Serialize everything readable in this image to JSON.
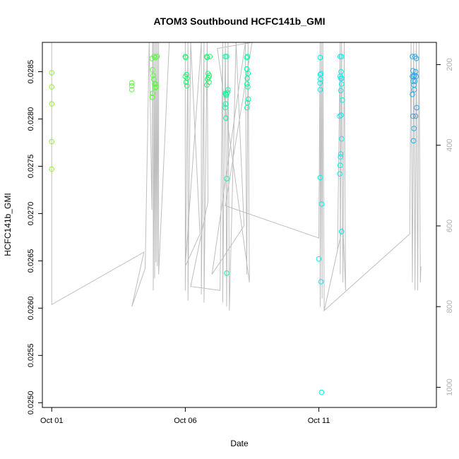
{
  "chart_data": {
    "type": "scatter",
    "title": "ATOM3 Southbound HCFC141b_GMI",
    "xlabel": "Date",
    "ylabel": "HCFC141b_GMI",
    "x_tick_labels": [
      "Oct 01",
      "Oct 06",
      "Oct 11"
    ],
    "x_tick_values": [
      1,
      6,
      11
    ],
    "xlim": [
      0.65,
      15.4
    ],
    "ylim": [
      0.02495,
      0.02881
    ],
    "y_ticks": [
      "0.0250",
      "0.0255",
      "0.0260",
      "0.0265",
      "0.0270",
      "0.0275",
      "0.0280",
      "0.0285"
    ],
    "y_tick_values": [
      0.025,
      0.0255,
      0.026,
      0.0265,
      0.027,
      0.0275,
      0.028,
      0.0285
    ],
    "y2_ticks": [
      "200",
      "400",
      "600",
      "800",
      "1000"
    ],
    "y2_tick_values": [
      200,
      400,
      600,
      800,
      1000
    ],
    "y2lim": [
      1050,
      145
    ],
    "grid": false,
    "legend": "none",
    "point_colors": [
      "#8cf238",
      "#5cf840",
      "#1cf86c",
      "#10f59a",
      "#10eaea",
      "#1ad2ea",
      "#2aa8e8"
    ],
    "line_color": "#bebebe",
    "points": [
      [
        1.0,
        0.02849,
        0
      ],
      [
        1.0,
        0.02834,
        0
      ],
      [
        1.0,
        0.02816,
        0
      ],
      [
        1.0,
        0.02776,
        0
      ],
      [
        1.0,
        0.02747,
        0
      ],
      [
        4.0,
        0.02838,
        1
      ],
      [
        4.0,
        0.02835,
        1
      ],
      [
        4.0,
        0.02831,
        1
      ],
      [
        4.75,
        0.02864,
        1
      ],
      [
        4.77,
        0.02852,
        1
      ],
      [
        4.8,
        0.02846,
        1
      ],
      [
        4.82,
        0.02842,
        1
      ],
      [
        4.85,
        0.02837,
        1
      ],
      [
        4.87,
        0.02833,
        1
      ],
      [
        4.78,
        0.02827,
        1
      ],
      [
        4.76,
        0.02823,
        1
      ],
      [
        4.9,
        0.02837,
        1
      ],
      [
        4.92,
        0.02834,
        1
      ],
      [
        4.88,
        0.02865,
        1
      ],
      [
        4.94,
        0.02866,
        1
      ],
      [
        4.84,
        0.02866,
        1
      ],
      [
        6.0,
        0.02866,
        2
      ],
      [
        6.02,
        0.02865,
        2
      ],
      [
        6.05,
        0.02847,
        2
      ],
      [
        6.07,
        0.02843,
        2
      ],
      [
        6.03,
        0.02839,
        2
      ],
      [
        6.06,
        0.02835,
        2
      ],
      [
        6.0,
        0.02845,
        2
      ],
      [
        6.8,
        0.02866,
        2
      ],
      [
        6.82,
        0.02865,
        2
      ],
      [
        6.85,
        0.02848,
        2
      ],
      [
        6.87,
        0.02844,
        2
      ],
      [
        6.83,
        0.02842,
        2
      ],
      [
        6.89,
        0.02839,
        2
      ],
      [
        6.81,
        0.02836,
        2
      ],
      [
        6.92,
        0.02866,
        2
      ],
      [
        6.9,
        0.02846,
        2
      ],
      [
        7.5,
        0.02866,
        3
      ],
      [
        7.55,
        0.02866,
        3
      ],
      [
        7.5,
        0.02827,
        3
      ],
      [
        7.52,
        0.02826,
        3
      ],
      [
        7.54,
        0.02825,
        3
      ],
      [
        7.51,
        0.02816,
        3
      ],
      [
        7.5,
        0.02812,
        3
      ],
      [
        7.52,
        0.02801,
        3
      ],
      [
        7.6,
        0.02831,
        3
      ],
      [
        7.58,
        0.02828,
        3
      ],
      [
        7.55,
        0.02737,
        3
      ],
      [
        7.55,
        0.02637,
        3
      ],
      [
        8.3,
        0.02865,
        3
      ],
      [
        8.33,
        0.02866,
        3
      ],
      [
        8.3,
        0.02853,
        3
      ],
      [
        8.32,
        0.02843,
        3
      ],
      [
        8.35,
        0.02848,
        3
      ],
      [
        8.31,
        0.02837,
        3
      ],
      [
        8.34,
        0.02834,
        3
      ],
      [
        8.36,
        0.02821,
        3
      ],
      [
        8.33,
        0.02817,
        3
      ],
      [
        8.31,
        0.02812,
        3
      ],
      [
        11.05,
        0.02865,
        4
      ],
      [
        11.05,
        0.02847,
        4
      ],
      [
        11.08,
        0.02848,
        4
      ],
      [
        11.06,
        0.02842,
        4
      ],
      [
        11.04,
        0.02838,
        4
      ],
      [
        11.05,
        0.02831,
        4
      ],
      [
        11.05,
        0.02738,
        4
      ],
      [
        11.1,
        0.0271,
        4
      ],
      [
        11.0,
        0.02652,
        4
      ],
      [
        11.08,
        0.02628,
        4
      ],
      [
        11.1,
        0.02511,
        4
      ],
      [
        11.8,
        0.02866,
        4
      ],
      [
        11.85,
        0.02866,
        4
      ],
      [
        11.8,
        0.02845,
        4
      ],
      [
        11.83,
        0.0285,
        4
      ],
      [
        11.82,
        0.02843,
        4
      ],
      [
        11.86,
        0.02843,
        4
      ],
      [
        11.85,
        0.02837,
        4
      ],
      [
        11.82,
        0.0283,
        4
      ],
      [
        11.88,
        0.0282,
        4
      ],
      [
        11.83,
        0.02804,
        4
      ],
      [
        11.78,
        0.02803,
        4
      ],
      [
        11.85,
        0.02779,
        4
      ],
      [
        11.82,
        0.02763,
        4
      ],
      [
        11.81,
        0.0276,
        4
      ],
      [
        11.8,
        0.02751,
        4
      ],
      [
        11.78,
        0.02742,
        4
      ],
      [
        11.85,
        0.02681,
        4
      ],
      [
        14.5,
        0.02866,
        6
      ],
      [
        14.6,
        0.02866,
        6
      ],
      [
        14.65,
        0.02864,
        6
      ],
      [
        14.52,
        0.02851,
        6
      ],
      [
        14.62,
        0.0285,
        6
      ],
      [
        14.55,
        0.02845,
        6
      ],
      [
        14.5,
        0.02845,
        6
      ],
      [
        14.64,
        0.02845,
        6
      ],
      [
        14.58,
        0.02846,
        6
      ],
      [
        14.6,
        0.0284,
        6
      ],
      [
        14.53,
        0.0284,
        6
      ],
      [
        14.56,
        0.02836,
        6
      ],
      [
        14.57,
        0.02831,
        6
      ],
      [
        14.5,
        0.02826,
        6
      ],
      [
        14.66,
        0.02812,
        6
      ],
      [
        14.52,
        0.02803,
        6
      ],
      [
        14.62,
        0.02803,
        6
      ],
      [
        14.56,
        0.0279,
        6
      ],
      [
        14.54,
        0.02777,
        6
      ]
    ],
    "profile_line": [
      [
        1.0,
        145
      ],
      [
        1.0,
        795
      ],
      [
        4.45,
        665
      ],
      [
        4.0,
        800
      ],
      [
        4.5,
        705
      ],
      [
        4.65,
        145
      ],
      [
        4.75,
        560
      ],
      [
        4.78,
        145
      ],
      [
        4.8,
        145
      ],
      [
        4.8,
        760
      ],
      [
        4.85,
        145
      ],
      [
        4.85,
        730
      ],
      [
        4.9,
        145
      ],
      [
        4.9,
        690
      ],
      [
        4.95,
        145
      ],
      [
        4.95,
        700
      ],
      [
        5.0,
        145
      ],
      [
        5.0,
        720
      ],
      [
        5.4,
        145
      ],
      [
        6.0,
        145
      ],
      [
        6.0,
        760
      ],
      [
        6.1,
        145
      ],
      [
        6.1,
        785
      ],
      [
        6.2,
        145
      ],
      [
        6.55,
        620
      ],
      [
        6.0,
        700
      ],
      [
        6.6,
        145
      ],
      [
        6.6,
        770
      ],
      [
        6.7,
        145
      ],
      [
        6.7,
        790
      ],
      [
        6.82,
        145
      ],
      [
        6.85,
        540
      ],
      [
        6.2,
        750
      ],
      [
        7.3,
        760
      ],
      [
        7.4,
        145
      ],
      [
        7.4,
        790
      ],
      [
        7.5,
        145
      ],
      [
        7.55,
        800
      ],
      [
        7.6,
        145
      ],
      [
        7.65,
        810
      ],
      [
        7.9,
        145
      ],
      [
        8.2,
        600
      ],
      [
        7.0,
        720
      ],
      [
        8.25,
        145
      ],
      [
        8.3,
        720
      ],
      [
        8.35,
        145
      ],
      [
        8.4,
        740
      ],
      [
        7.2,
        160
      ],
      [
        8.5,
        145
      ],
      [
        7.5,
        550
      ],
      [
        11.0,
        630
      ],
      [
        11.05,
        145
      ],
      [
        11.05,
        800
      ],
      [
        11.1,
        145
      ],
      [
        11.12,
        780
      ],
      [
        11.15,
        145
      ],
      [
        11.2,
        810
      ],
      [
        11.7,
        660
      ],
      [
        11.8,
        145
      ],
      [
        11.8,
        720
      ],
      [
        11.85,
        145
      ],
      [
        11.9,
        740
      ],
      [
        11.95,
        145
      ],
      [
        12.0,
        760
      ],
      [
        11.9,
        600
      ],
      [
        11.2,
        810
      ],
      [
        14.4,
        620
      ],
      [
        14.45,
        145
      ],
      [
        14.5,
        740
      ],
      [
        14.55,
        145
      ],
      [
        14.6,
        760
      ],
      [
        14.65,
        145
      ],
      [
        14.7,
        760
      ],
      [
        14.75,
        145
      ],
      [
        14.8,
        740
      ],
      [
        14.82,
        700
      ]
    ]
  }
}
